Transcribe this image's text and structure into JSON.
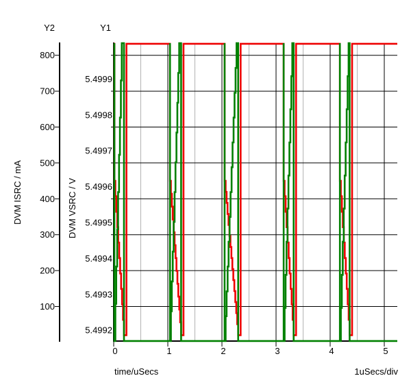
{
  "chart_data": {
    "type": "line",
    "title": "",
    "x_axis": {
      "label": "time/uSecs",
      "scale_label": "1uSecs/div",
      "ticks": [
        0,
        1,
        2,
        3,
        4,
        5
      ],
      "min": 0,
      "max": 5.24,
      "minor_per_major": 2,
      "grid": true
    },
    "y1_axis": {
      "name": "Y1",
      "label": "DVM VSRC / V",
      "units": "V",
      "ticks": [
        5.4999,
        5.4998,
        5.4997,
        5.4996,
        5.4995,
        5.4994,
        5.4993,
        5.4992
      ],
      "max": 5.5,
      "min": 5.49917,
      "volts_per_div": 0.0001
    },
    "y2_axis": {
      "name": "Y2",
      "label": "DVM ISRC / mA",
      "units": "mA",
      "ticks": [
        800,
        700,
        600,
        500,
        400,
        300,
        200,
        100
      ],
      "max": 833,
      "min": 3,
      "ma_per_div": 100,
      "grid": true
    },
    "series": [
      {
        "name": "DVM VSRC",
        "color": "#008000",
        "axis": "y1",
        "low": 5.49917,
        "high": 5.5,
        "shape": "spike-then-staircase-ramp",
        "pulses": [
          {
            "t_rise": 0.013,
            "t_top": 0.15,
            "t_fall": 0.19
          },
          {
            "t_rise": 1.04,
            "t_top": 1.21,
            "t_fall": 1.245
          },
          {
            "t_rise": 2.05,
            "t_top": 2.27,
            "t_fall": 2.3
          },
          {
            "t_rise": 3.14,
            "t_top": 3.3,
            "t_fall": 3.325
          },
          {
            "t_rise": 4.18,
            "t_top": 4.34,
            "t_fall": 4.36
          }
        ]
      },
      {
        "name": "DVM ISRC",
        "color": "#ee0000",
        "axis": "y2",
        "high": 832,
        "drop_level": 450,
        "low": 20,
        "shape": "flat-top-with-staircase-droop",
        "pulses": [
          {
            "t_drop": 0.013,
            "t_low": 0.19,
            "t_recover": 0.235
          },
          {
            "t_drop": 1.04,
            "t_low": 1.245,
            "t_recover": 1.29
          },
          {
            "t_drop": 2.05,
            "t_low": 2.3,
            "t_recover": 2.345
          },
          {
            "t_drop": 3.14,
            "t_low": 3.325,
            "t_recover": 3.37
          },
          {
            "t_drop": 4.18,
            "t_low": 4.36,
            "t_recover": 4.405
          }
        ]
      }
    ],
    "style": {
      "background": "#ffffff",
      "major_grid_color": "#000000",
      "minor_grid_color": "#b3b3b3",
      "axis_color": "#000000",
      "legend_position": "none"
    }
  }
}
